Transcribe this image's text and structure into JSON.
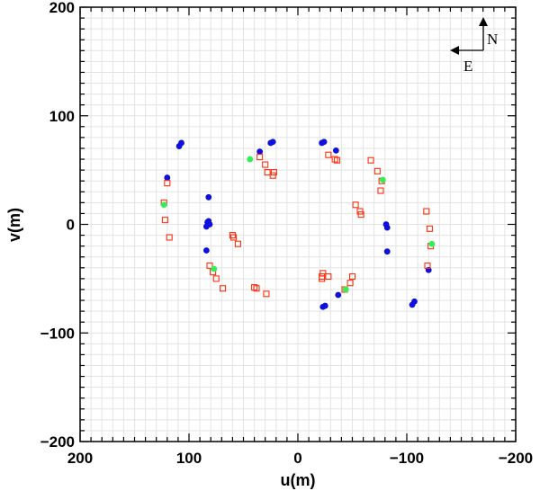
{
  "chart_data": {
    "type": "scatter",
    "title": "",
    "xlabel": "u(m)",
    "ylabel": "v(m)",
    "xlim": [
      200,
      -200
    ],
    "ylim": [
      -200,
      200
    ],
    "x_reversed": true,
    "xticks": [
      200,
      100,
      0,
      -100,
      -200
    ],
    "yticks": [
      -200,
      -100,
      0,
      100,
      200
    ],
    "xtick_labels": [
      "200",
      "100",
      "0",
      "−100",
      "−200"
    ],
    "ytick_labels": [
      "−200",
      "−100",
      "0",
      "100",
      "200"
    ],
    "grid": true,
    "compass": {
      "north_label": "N",
      "east_label": "E"
    },
    "series": [
      {
        "marker": "filled-circle",
        "color": "#1010dd",
        "points": [
          [
            107,
            75
          ],
          [
            109,
            72
          ],
          [
            120,
            43
          ],
          [
            35,
            67
          ],
          [
            23,
            76
          ],
          [
            25,
            75
          ],
          [
            83,
            2
          ],
          [
            84,
            -2
          ],
          [
            84,
            -24
          ],
          [
            82,
            25
          ],
          [
            82,
            3
          ],
          [
            81,
            0
          ],
          [
            -24,
            76
          ],
          [
            -22,
            75
          ],
          [
            -35,
            68
          ],
          [
            -82,
            -25
          ],
          [
            -82,
            -3
          ],
          [
            -81,
            0
          ],
          [
            -107,
            -71
          ],
          [
            -105,
            -74
          ],
          [
            -120,
            -42
          ],
          [
            -37,
            -65
          ],
          [
            -25,
            -75
          ],
          [
            -23,
            -76
          ]
        ]
      },
      {
        "marker": "open-square",
        "color": "#ff3010",
        "points": [
          [
            120,
            38
          ],
          [
            123,
            20
          ],
          [
            122,
            4
          ],
          [
            118,
            -12
          ],
          [
            35,
            62
          ],
          [
            30,
            55
          ],
          [
            28,
            48
          ],
          [
            22,
            48
          ],
          [
            23,
            45
          ],
          [
            60,
            -10
          ],
          [
            59,
            -12
          ],
          [
            55,
            -18
          ],
          [
            40,
            -58
          ],
          [
            38,
            -59
          ],
          [
            29,
            -64
          ],
          [
            -76,
            31
          ],
          [
            -77,
            40
          ],
          [
            -73,
            49
          ],
          [
            -67,
            59
          ],
          [
            -28,
            64
          ],
          [
            -34,
            60
          ],
          [
            -36,
            59
          ],
          [
            -53,
            18
          ],
          [
            -57,
            12
          ],
          [
            -58,
            9
          ],
          [
            -23,
            -45
          ],
          [
            -22,
            -48
          ],
          [
            -22,
            -50
          ],
          [
            -28,
            -48
          ],
          [
            -50,
            -48
          ],
          [
            -48,
            -54
          ],
          [
            -43,
            -60
          ],
          [
            -118,
            12
          ],
          [
            -121,
            -4
          ],
          [
            -122,
            -20
          ],
          [
            -119,
            -38
          ],
          [
            75,
            -50
          ],
          [
            69,
            -59
          ],
          [
            78,
            -44
          ],
          [
            81,
            -38
          ]
        ]
      },
      {
        "marker": "filled-circle",
        "color": "#33ee55",
        "points": [
          [
            123,
            18
          ],
          [
            44,
            60
          ],
          [
            -78,
            41
          ],
          [
            -123,
            -18
          ],
          [
            -44,
            -60
          ],
          [
            77,
            -41
          ]
        ]
      }
    ]
  }
}
